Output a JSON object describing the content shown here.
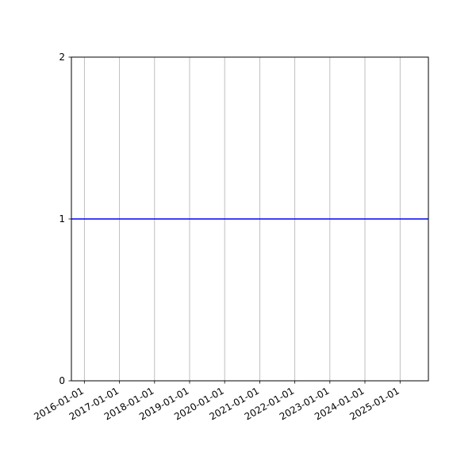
{
  "chart_data": {
    "type": "line",
    "title": "",
    "xlabel": "",
    "ylabel": "",
    "x_axis_type": "date",
    "xlim": [
      "2015-08-19",
      "2025-10-23"
    ],
    "ylim": [
      0,
      2
    ],
    "x_ticks": [
      "2016-01-01",
      "2017-01-01",
      "2018-01-01",
      "2019-01-01",
      "2020-01-01",
      "2021-01-01",
      "2022-01-01",
      "2023-01-01",
      "2024-01-01",
      "2025-01-01"
    ],
    "y_ticks": [
      "0",
      "1",
      "2"
    ],
    "grid": {
      "x": true,
      "y": false,
      "color": "#b0b0b0"
    },
    "series": [
      {
        "color": "#0000ff",
        "x": [
          "2015-08-19",
          "2025-10-23"
        ],
        "y": [
          1,
          1
        ]
      }
    ]
  }
}
